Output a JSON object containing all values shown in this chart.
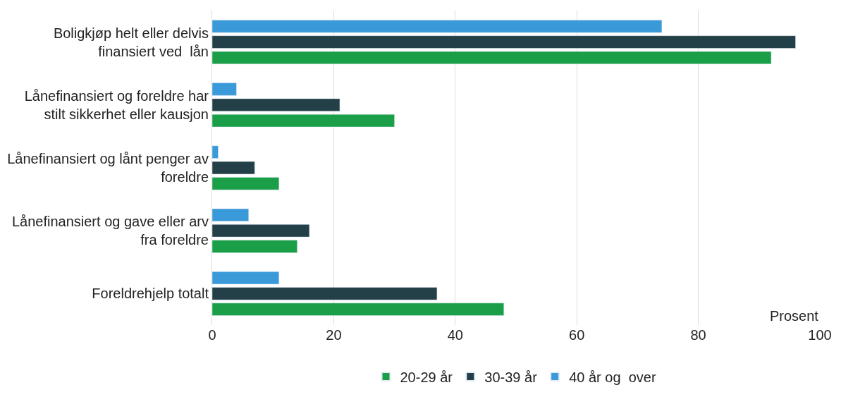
{
  "chart_data": {
    "type": "bar",
    "orientation": "horizontal",
    "xlabel": "Prosent",
    "categories": [
      "Boligkjøp helt eller delvis\nfinansiert ved  lån",
      "Lånefinansiert og foreldre har\nstilt sikkerhet eller kausjon",
      "Lånefinansiert og lånt penger av\nforeldre",
      "Lånefinansiert og gave eller arv\nfra foreldre",
      "Foreldrehjelp totalt"
    ],
    "series": [
      {
        "name": "20-29 år",
        "color": "#1a9e48",
        "values": [
          92,
          30,
          11,
          14,
          48
        ]
      },
      {
        "name": "30-39 år",
        "color": "#233f47",
        "values": [
          96,
          21,
          7,
          16,
          37
        ]
      },
      {
        "name": "40 år og  over",
        "color": "#3a9ad9",
        "values": [
          74,
          4,
          1,
          6,
          11
        ]
      }
    ],
    "xlim": [
      0,
      100
    ],
    "xticks": [
      0,
      20,
      40,
      60,
      80,
      100
    ],
    "grid": "x",
    "legend": "bottom"
  }
}
